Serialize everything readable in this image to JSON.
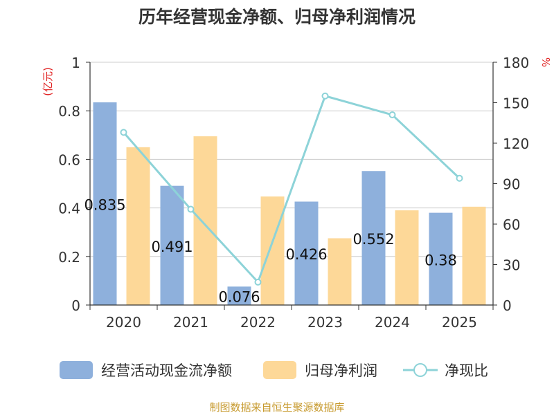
{
  "chart_data": {
    "type": "bar",
    "title": "历年经营现金净额、归母净利润情况",
    "categories": [
      "2020",
      "2021",
      "2022",
      "2023",
      "2024",
      "2025"
    ],
    "y_left": {
      "unit_label": "(亿元)",
      "range": [
        0,
        1
      ],
      "ticks": [
        "0",
        "0.2",
        "0.4",
        "0.6",
        "0.8",
        "1"
      ],
      "tick_values": [
        0,
        0.2,
        0.4,
        0.6,
        0.8,
        1
      ]
    },
    "y_right": {
      "unit_label": "%",
      "range": [
        0,
        180
      ],
      "ticks": [
        "0",
        "30",
        "60",
        "90",
        "120",
        "150",
        "180"
      ],
      "tick_values": [
        0,
        30,
        60,
        90,
        120,
        150,
        180
      ]
    },
    "series": [
      {
        "name": "经营活动现金流净额",
        "type": "bar",
        "axis": "left",
        "color": "#8eb0dc",
        "values": [
          0.835,
          0.491,
          0.076,
          0.426,
          0.552,
          0.38
        ],
        "labels": [
          "0.835",
          "0.491",
          "0.076",
          "0.426",
          "0.552",
          "0.38"
        ]
      },
      {
        "name": "归母净利润",
        "type": "bar",
        "axis": "left",
        "color": "#fdd898",
        "values": [
          0.65,
          0.695,
          0.447,
          0.275,
          0.39,
          0.405
        ]
      },
      {
        "name": "净现比",
        "type": "line",
        "axis": "right",
        "color": "#8dd3d8",
        "values": [
          128,
          71,
          17,
          155,
          141,
          94
        ]
      }
    ],
    "legend": [
      "经营活动现金流净额",
      "归母净利润",
      "净现比"
    ],
    "legend_position": "bottom",
    "grid": true,
    "source": "制图数据来自恒生聚源数据库",
    "colors": {
      "title": "#333333",
      "axis": "#333333",
      "unit": "#e02020",
      "grid": "#cccccc",
      "source": "#c79a2e"
    }
  }
}
